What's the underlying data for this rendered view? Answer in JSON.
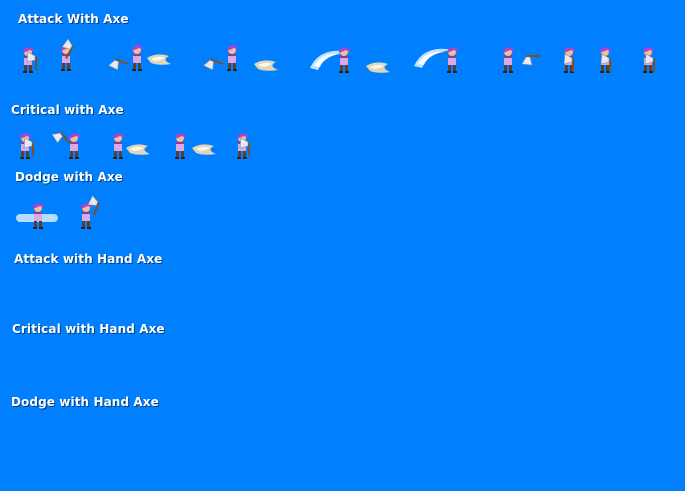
{
  "sections": {
    "attack_with_axe": "Attack With Axe",
    "critical_with_axe": "Critical with Axe",
    "dodge_with_axe": "Dodge with Axe",
    "attack_with_hand_axe": "Attack with Hand Axe",
    "critical_with_hand_axe": "Critical with Hand Axe",
    "dodge_with_hand_axe": "Dodge with Hand Axe"
  },
  "colors": {
    "background": "#0080ff",
    "hair": "#b040d0",
    "shirt": "#d8a8e8",
    "skin": "#f0c090",
    "pants": "#584030",
    "axe_blade": "#e8e8f0",
    "slash_effect": "#f8e0b0",
    "swoosh": "#c8e8ff"
  }
}
